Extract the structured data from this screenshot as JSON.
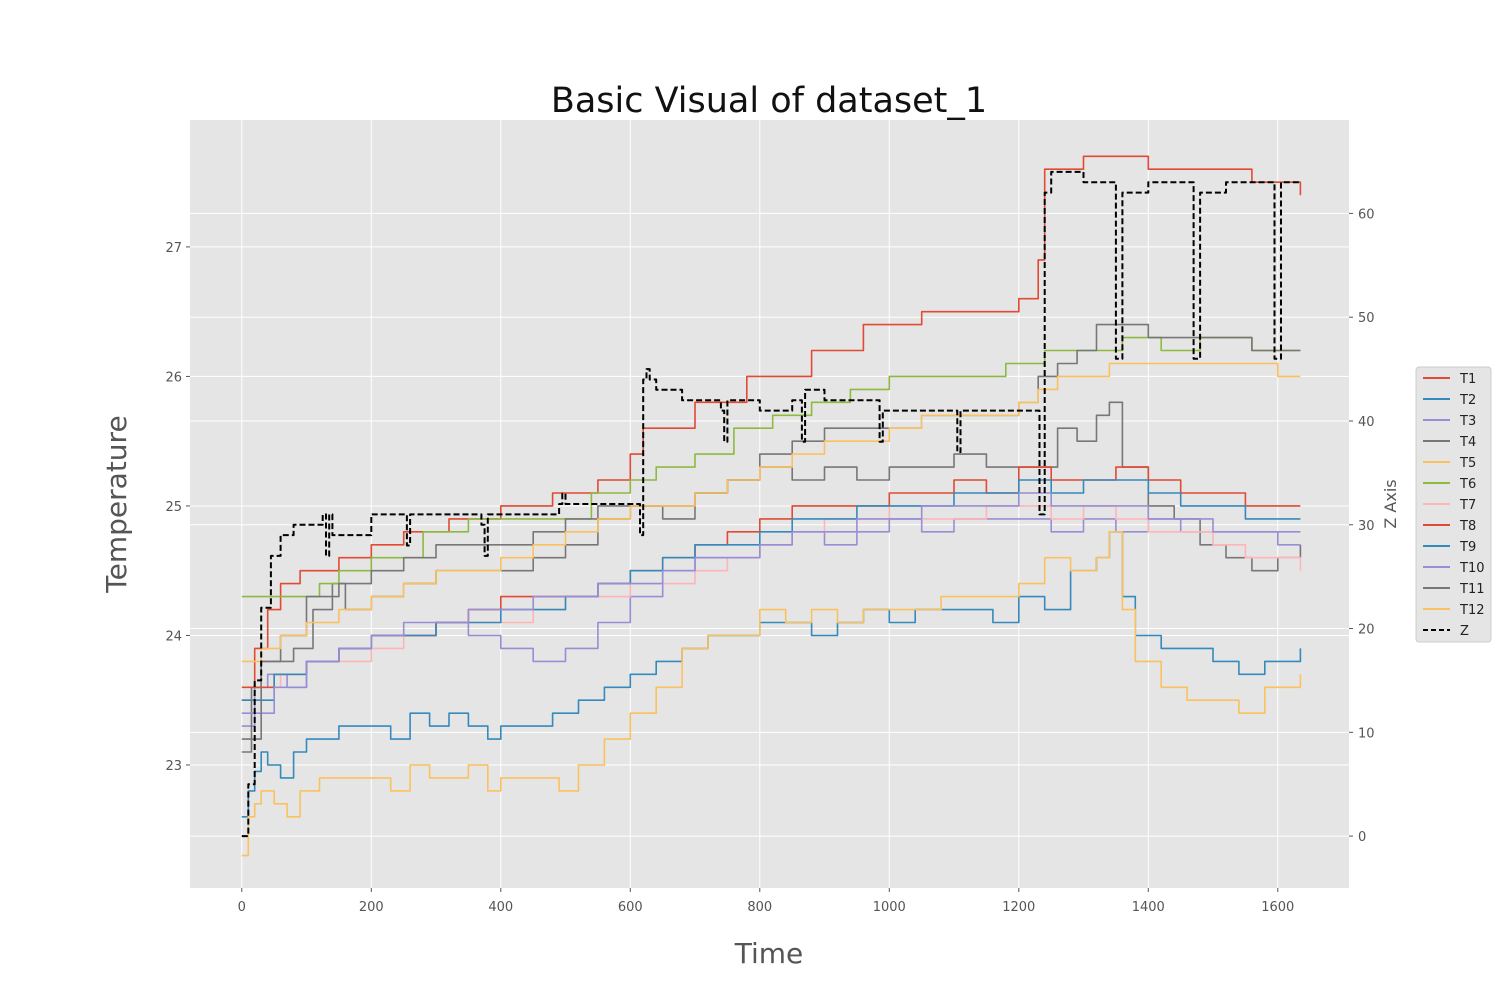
{
  "chart_data": {
    "type": "line",
    "title": "Basic Visual of dataset_1",
    "xlabel": "Time",
    "ylabel": "Temperature",
    "y2label": "Z Axis",
    "xlim": [
      -80,
      1710
    ],
    "ylim": [
      22.05,
      27.98
    ],
    "y2lim": [
      -5,
      69
    ],
    "xticks": [
      0,
      200,
      400,
      600,
      800,
      1000,
      1200,
      1400,
      1600
    ],
    "yticks": [
      23,
      24,
      25,
      26,
      27
    ],
    "y2ticks": [
      0,
      10,
      20,
      30,
      40,
      50,
      60
    ],
    "grid": true,
    "legend_position": "right",
    "series": [
      {
        "name": "T1",
        "color": "#E24A33",
        "axis": "left",
        "style": "solid",
        "x": [
          0,
          20,
          40,
          60,
          90,
          150,
          200,
          250,
          320,
          400,
          480,
          550,
          600,
          620,
          700,
          780,
          880,
          960,
          1050,
          1160,
          1200,
          1230,
          1240,
          1300,
          1400,
          1500,
          1560,
          1635
        ],
        "values": [
          23.5,
          23.9,
          24.2,
          24.4,
          24.5,
          24.6,
          24.7,
          24.8,
          24.9,
          25.0,
          25.1,
          25.2,
          25.4,
          25.6,
          25.8,
          26.0,
          26.2,
          26.4,
          26.5,
          26.5,
          26.6,
          26.9,
          27.6,
          27.7,
          27.6,
          27.6,
          27.5,
          27.4
        ]
      },
      {
        "name": "T2",
        "color": "#348ABD",
        "axis": "left",
        "style": "solid",
        "x": [
          0,
          10,
          20,
          30,
          40,
          60,
          80,
          100,
          130,
          150,
          170,
          200,
          230,
          260,
          290,
          320,
          350,
          380,
          400,
          440,
          480,
          520,
          560,
          600,
          640,
          680,
          720,
          760,
          800,
          840,
          880,
          920,
          960,
          1000,
          1040,
          1080,
          1120,
          1160,
          1200,
          1240,
          1280,
          1320,
          1340,
          1360,
          1380,
          1420,
          1460,
          1500,
          1540,
          1580,
          1635
        ],
        "values": [
          22.6,
          22.8,
          22.95,
          23.1,
          23.0,
          22.9,
          23.1,
          23.2,
          23.2,
          23.3,
          23.3,
          23.3,
          23.2,
          23.4,
          23.3,
          23.4,
          23.3,
          23.2,
          23.3,
          23.3,
          23.4,
          23.5,
          23.6,
          23.7,
          23.8,
          23.9,
          24.0,
          24.0,
          24.1,
          24.1,
          24.0,
          24.1,
          24.2,
          24.1,
          24.2,
          24.2,
          24.2,
          24.1,
          24.3,
          24.2,
          24.5,
          24.6,
          24.8,
          24.3,
          24.0,
          23.9,
          23.9,
          23.8,
          23.7,
          23.8,
          23.9
        ]
      },
      {
        "name": "T3",
        "color": "#988ED5",
        "axis": "left",
        "style": "solid",
        "x": [
          0,
          20,
          40,
          70,
          100,
          150,
          200,
          250,
          300,
          350,
          400,
          450,
          500,
          550,
          600,
          650,
          700,
          750,
          800,
          850,
          900,
          950,
          1000,
          1050,
          1100,
          1150,
          1200,
          1250,
          1300,
          1350,
          1400,
          1450,
          1500,
          1550,
          1600,
          1635
        ],
        "values": [
          23.3,
          23.6,
          23.7,
          23.6,
          23.8,
          23.9,
          24.0,
          24.0,
          24.1,
          24.0,
          23.9,
          23.8,
          23.9,
          24.1,
          24.3,
          24.5,
          24.6,
          24.6,
          24.7,
          24.8,
          24.7,
          24.8,
          24.9,
          24.8,
          24.9,
          24.9,
          24.9,
          24.8,
          24.9,
          24.8,
          24.9,
          24.8,
          24.8,
          24.8,
          24.8,
          24.8
        ]
      },
      {
        "name": "T4",
        "color": "#777777",
        "axis": "left",
        "style": "solid",
        "x": [
          0,
          15,
          30,
          50,
          80,
          110,
          140,
          160,
          200,
          250,
          300,
          350,
          400,
          450,
          500,
          550,
          600,
          650,
          700,
          750,
          800,
          850,
          900,
          950,
          1000,
          1050,
          1100,
          1150,
          1200,
          1230,
          1260,
          1290,
          1320,
          1340,
          1360,
          1400,
          1440,
          1480,
          1520,
          1560,
          1600,
          1635
        ],
        "values": [
          23.1,
          23.6,
          23.8,
          23.8,
          23.9,
          24.2,
          24.4,
          24.2,
          24.3,
          24.4,
          24.5,
          24.5,
          24.5,
          24.6,
          24.7,
          24.9,
          25.0,
          24.9,
          25.1,
          25.2,
          25.3,
          25.2,
          25.3,
          25.2,
          25.3,
          25.3,
          25.4,
          25.3,
          25.3,
          25.3,
          25.6,
          25.5,
          25.7,
          25.8,
          25.3,
          25.0,
          24.9,
          24.7,
          24.6,
          24.5,
          24.6,
          24.7
        ]
      },
      {
        "name": "T5",
        "color": "#FBC15E",
        "axis": "left",
        "style": "solid",
        "x": [
          0,
          10,
          20,
          30,
          50,
          70,
          90,
          120,
          150,
          200,
          230,
          260,
          290,
          320,
          350,
          380,
          400,
          430,
          460,
          490,
          520,
          560,
          600,
          640,
          680,
          720,
          760,
          800,
          840,
          880,
          920,
          960,
          1000,
          1040,
          1080,
          1120,
          1160,
          1200,
          1240,
          1280,
          1320,
          1340,
          1360,
          1380,
          1420,
          1460,
          1500,
          1540,
          1580,
          1635
        ],
        "values": [
          22.3,
          22.6,
          22.7,
          22.8,
          22.7,
          22.6,
          22.8,
          22.9,
          22.9,
          22.9,
          22.8,
          23.0,
          22.9,
          22.9,
          23.0,
          22.8,
          22.9,
          22.9,
          22.9,
          22.8,
          23.0,
          23.2,
          23.4,
          23.6,
          23.9,
          24.0,
          24.0,
          24.2,
          24.1,
          24.2,
          24.1,
          24.2,
          24.2,
          24.2,
          24.3,
          24.3,
          24.3,
          24.4,
          24.6,
          24.5,
          24.6,
          24.8,
          24.2,
          23.8,
          23.6,
          23.5,
          23.5,
          23.4,
          23.6,
          23.7
        ]
      },
      {
        "name": "T6",
        "color": "#8EBA42",
        "axis": "left",
        "style": "solid",
        "x": [
          0,
          50,
          90,
          120,
          150,
          200,
          280,
          350,
          420,
          480,
          540,
          600,
          640,
          700,
          760,
          820,
          880,
          940,
          1000,
          1060,
          1120,
          1180,
          1240,
          1300,
          1360,
          1420,
          1480,
          1560,
          1635
        ],
        "values": [
          24.3,
          24.3,
          24.3,
          24.4,
          24.5,
          24.6,
          24.8,
          24.9,
          24.9,
          24.9,
          25.1,
          25.2,
          25.3,
          25.4,
          25.6,
          25.7,
          25.8,
          25.9,
          26.0,
          26.0,
          26.0,
          26.1,
          26.2,
          26.2,
          26.3,
          26.2,
          26.3,
          26.2,
          26.2
        ]
      },
      {
        "name": "T7",
        "color": "#FFB5B8",
        "axis": "left",
        "style": "solid",
        "x": [
          0,
          30,
          60,
          100,
          150,
          200,
          250,
          300,
          350,
          400,
          450,
          500,
          550,
          600,
          650,
          700,
          750,
          800,
          850,
          900,
          950,
          1000,
          1050,
          1100,
          1150,
          1200,
          1250,
          1300,
          1350,
          1400,
          1450,
          1500,
          1550,
          1600,
          1635
        ],
        "values": [
          23.5,
          23.6,
          23.7,
          23.8,
          23.8,
          23.9,
          24.0,
          24.1,
          24.1,
          24.1,
          24.2,
          24.3,
          24.3,
          24.4,
          24.4,
          24.5,
          24.6,
          24.7,
          24.8,
          24.9,
          24.9,
          25.0,
          24.9,
          24.9,
          25.0,
          25.0,
          24.9,
          25.0,
          24.9,
          24.8,
          24.8,
          24.7,
          24.6,
          24.6,
          24.5
        ]
      },
      {
        "name": "T8",
        "color": "#E24A33",
        "axis": "left",
        "style": "solid",
        "x": [
          0,
          50,
          100,
          150,
          200,
          250,
          300,
          350,
          400,
          450,
          500,
          550,
          600,
          650,
          700,
          750,
          800,
          850,
          900,
          950,
          1000,
          1050,
          1100,
          1150,
          1200,
          1250,
          1300,
          1350,
          1400,
          1450,
          1500,
          1550,
          1600,
          1635
        ],
        "values": [
          23.6,
          23.7,
          23.8,
          23.9,
          24.0,
          24.0,
          24.1,
          24.2,
          24.3,
          24.3,
          24.3,
          24.4,
          24.5,
          24.6,
          24.7,
          24.8,
          24.9,
          25.0,
          25.0,
          25.0,
          25.1,
          25.1,
          25.2,
          25.1,
          25.3,
          25.2,
          25.2,
          25.3,
          25.2,
          25.1,
          25.1,
          25.0,
          25.0,
          25.0
        ]
      },
      {
        "name": "T9",
        "color": "#348ABD",
        "axis": "left",
        "style": "solid",
        "x": [
          0,
          50,
          100,
          150,
          200,
          250,
          300,
          350,
          400,
          450,
          500,
          550,
          600,
          650,
          700,
          750,
          800,
          850,
          900,
          950,
          1000,
          1050,
          1100,
          1150,
          1200,
          1250,
          1300,
          1350,
          1400,
          1450,
          1500,
          1550,
          1600,
          1635
        ],
        "values": [
          23.5,
          23.7,
          23.8,
          23.9,
          24.0,
          24.0,
          24.1,
          24.1,
          24.2,
          24.2,
          24.3,
          24.4,
          24.5,
          24.6,
          24.7,
          24.7,
          24.8,
          24.9,
          24.9,
          25.0,
          25.0,
          25.0,
          25.1,
          25.1,
          25.2,
          25.1,
          25.2,
          25.2,
          25.1,
          25.0,
          25.0,
          24.9,
          24.9,
          24.9
        ]
      },
      {
        "name": "T10",
        "color": "#988ED5",
        "axis": "left",
        "style": "solid",
        "x": [
          0,
          50,
          100,
          150,
          200,
          250,
          300,
          350,
          400,
          450,
          500,
          550,
          600,
          650,
          700,
          750,
          800,
          850,
          900,
          950,
          1000,
          1050,
          1100,
          1150,
          1200,
          1250,
          1300,
          1350,
          1400,
          1450,
          1500,
          1550,
          1600,
          1635
        ],
        "values": [
          23.4,
          23.6,
          23.8,
          23.9,
          24.0,
          24.1,
          24.1,
          24.2,
          24.2,
          24.3,
          24.3,
          24.4,
          24.4,
          24.5,
          24.6,
          24.6,
          24.7,
          24.8,
          24.8,
          24.9,
          24.9,
          25.0,
          25.0,
          25.0,
          25.1,
          25.0,
          25.0,
          25.0,
          24.9,
          24.9,
          24.8,
          24.8,
          24.7,
          24.7
        ]
      },
      {
        "name": "T11",
        "color": "#777777",
        "axis": "left",
        "style": "solid",
        "x": [
          0,
          30,
          60,
          100,
          150,
          200,
          250,
          300,
          350,
          400,
          450,
          500,
          550,
          600,
          650,
          700,
          750,
          800,
          850,
          900,
          950,
          1000,
          1050,
          1100,
          1150,
          1200,
          1230,
          1260,
          1290,
          1320,
          1360,
          1400,
          1450,
          1500,
          1560,
          1635
        ],
        "values": [
          23.2,
          23.8,
          24.0,
          24.3,
          24.4,
          24.5,
          24.6,
          24.7,
          24.7,
          24.7,
          24.8,
          24.9,
          25.0,
          25.0,
          25.0,
          25.1,
          25.2,
          25.4,
          25.5,
          25.6,
          25.6,
          25.6,
          25.7,
          25.7,
          25.7,
          25.8,
          26.0,
          26.1,
          26.2,
          26.4,
          26.4,
          26.3,
          26.3,
          26.3,
          26.2,
          26.2
        ]
      },
      {
        "name": "T12",
        "color": "#FBC15E",
        "axis": "left",
        "style": "solid",
        "x": [
          0,
          30,
          60,
          100,
          150,
          200,
          250,
          300,
          350,
          400,
          450,
          500,
          550,
          600,
          650,
          700,
          750,
          800,
          850,
          900,
          950,
          1000,
          1050,
          1100,
          1150,
          1200,
          1230,
          1260,
          1300,
          1340,
          1400,
          1450,
          1500,
          1550,
          1600,
          1635
        ],
        "values": [
          23.8,
          23.9,
          24.0,
          24.1,
          24.2,
          24.3,
          24.4,
          24.5,
          24.5,
          24.6,
          24.7,
          24.8,
          24.9,
          25.0,
          25.0,
          25.1,
          25.2,
          25.3,
          25.4,
          25.5,
          25.5,
          25.6,
          25.7,
          25.7,
          25.7,
          25.8,
          25.9,
          26.0,
          26.0,
          26.1,
          26.1,
          26.1,
          26.1,
          26.1,
          26.0,
          26.0
        ]
      },
      {
        "name": "Z",
        "color": "#000000",
        "axis": "right",
        "style": "dashed",
        "x": [
          0,
          5,
          10,
          20,
          30,
          45,
          60,
          80,
          100,
          125,
          130,
          135,
          140,
          160,
          180,
          200,
          240,
          250,
          255,
          260,
          280,
          320,
          370,
          375,
          380,
          390,
          420,
          480,
          490,
          495,
          500,
          510,
          560,
          610,
          615,
          620,
          625,
          630,
          640,
          680,
          720,
          740,
          745,
          750,
          780,
          800,
          850,
          860,
          865,
          870,
          900,
          950,
          980,
          985,
          990,
          1020,
          1060,
          1100,
          1105,
          1110,
          1150,
          1200,
          1228,
          1232,
          1240,
          1250,
          1270,
          1300,
          1345,
          1350,
          1360,
          1400,
          1465,
          1470,
          1480,
          1520,
          1590,
          1595,
          1605,
          1635
        ],
        "values": [
          0,
          0,
          5,
          15,
          22,
          27,
          29,
          30,
          30,
          31,
          27,
          31,
          29,
          29,
          29,
          31,
          31,
          31,
          28,
          31,
          31,
          31,
          30,
          27,
          31,
          31,
          31,
          31,
          32,
          33,
          32,
          32,
          32,
          32,
          29,
          44,
          45,
          44,
          43,
          42,
          42,
          41,
          38,
          42,
          42,
          41,
          42,
          42,
          38,
          43,
          42,
          42,
          42,
          38,
          41,
          41,
          41,
          41,
          37,
          41,
          41,
          41,
          41,
          31,
          62,
          64,
          64,
          63,
          63,
          46,
          62,
          63,
          63,
          46,
          62,
          63,
          63,
          46,
          63,
          63
        ]
      }
    ]
  }
}
